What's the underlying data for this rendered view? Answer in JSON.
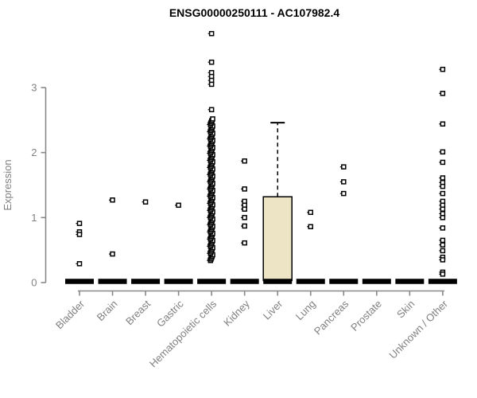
{
  "title": "ENSG00000250111 - AC107982.4",
  "colors": {
    "title": "#000000",
    "axis": "#888888",
    "tick_label": "#808080",
    "point": "#000000",
    "box_fill": "#ede4c6",
    "box_stroke": "#000000",
    "zero_bar": "#000000",
    "background": "#ffffff"
  },
  "chart_data": {
    "type": "boxplot-scatter",
    "title": "ENSG00000250111 - AC107982.4",
    "xlabel": "",
    "ylabel": "Expression",
    "yticks": [
      0,
      1,
      2,
      3
    ],
    "ylim": [
      0,
      3.9
    ],
    "grid": false,
    "legend": "none",
    "marker": "open-square",
    "categories": [
      "Bladder",
      "Brain",
      "Breast",
      "Gastric",
      "Hematopoietic cells",
      "Kidney",
      "Liver",
      "Lung",
      "Pancreas",
      "Prostate",
      "Skin",
      "Unknown / Other"
    ],
    "series": [
      {
        "category": "Bladder",
        "zero_bar": true,
        "points": [
          0.91,
          0.78,
          0.74,
          0.29
        ]
      },
      {
        "category": "Brain",
        "zero_bar": true,
        "points": [
          1.27,
          0.44
        ]
      },
      {
        "category": "Breast",
        "zero_bar": true,
        "points": [
          1.24
        ]
      },
      {
        "category": "Gastric",
        "zero_bar": true,
        "points": [
          1.19
        ]
      },
      {
        "category": "Hematopoietic cells",
        "zero_bar": true,
        "points": [
          3.83,
          3.39,
          3.23,
          3.17,
          3.11,
          3.05,
          2.66
        ],
        "dense_strip": {
          "from": 0.34,
          "to": 2.53,
          "step": 0.022
        }
      },
      {
        "category": "Kidney",
        "zero_bar": true,
        "points": [
          1.87,
          1.44,
          1.25,
          1.19,
          1.13,
          1.0,
          0.87,
          0.61
        ]
      },
      {
        "category": "Liver",
        "zero_bar": false,
        "points": [],
        "box": {
          "q1": 0,
          "median": 0,
          "q3": 1.32,
          "whisker_high": 2.46
        }
      },
      {
        "category": "Lung",
        "zero_bar": true,
        "points": [
          1.08,
          0.86
        ]
      },
      {
        "category": "Pancreas",
        "zero_bar": true,
        "points": [
          1.78,
          1.55,
          1.37
        ]
      },
      {
        "category": "Prostate",
        "zero_bar": true,
        "points": []
      },
      {
        "category": "Skin",
        "zero_bar": true,
        "points": []
      },
      {
        "category": "Unknown / Other",
        "zero_bar": true,
        "points": [
          3.28,
          2.91,
          2.44,
          2.01,
          1.85,
          1.61,
          1.54,
          1.48,
          1.37,
          1.25,
          1.19,
          1.13,
          1.06,
          1.0,
          0.84,
          0.65,
          0.58,
          0.49,
          0.39,
          0.35,
          0.16,
          0.13
        ]
      }
    ]
  }
}
